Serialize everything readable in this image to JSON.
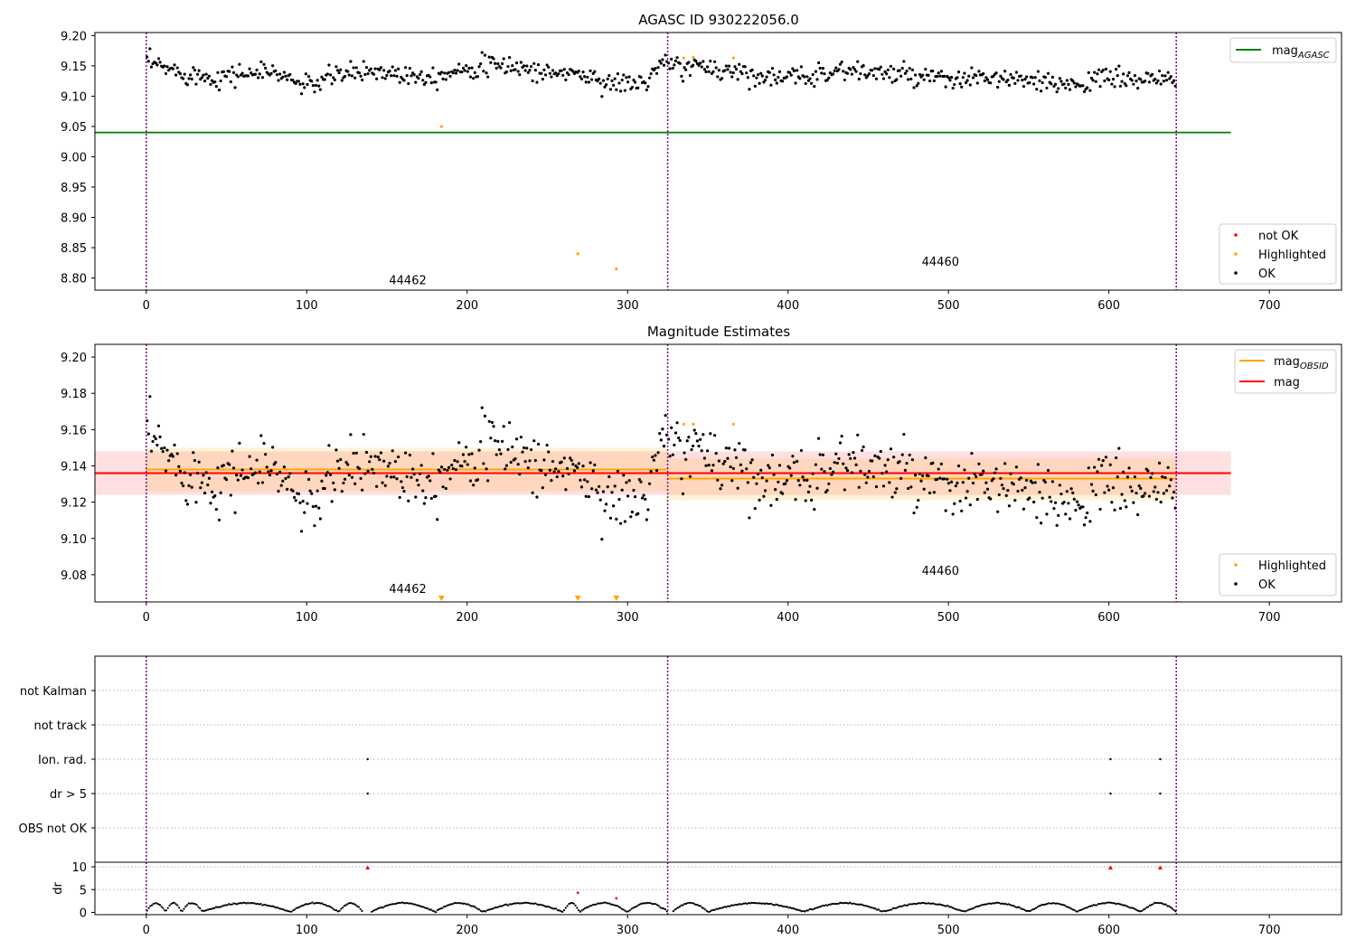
{
  "figure": {
    "colors": {
      "ok": "#000000",
      "highlighted": "#ffa500",
      "not_ok": "#ff0000",
      "agasc_line": "#008000",
      "mag_line": "#ff0000",
      "obsid_line": "#ffa500",
      "obs_boundary": "#800080"
    }
  },
  "chart_data": [
    {
      "id": "agasc",
      "type": "scatter",
      "title": "AGASC ID 930222056.0",
      "xlim": [
        -32,
        745
      ],
      "ylim": [
        8.78,
        9.205
      ],
      "x_ticks": [
        0,
        100,
        200,
        300,
        400,
        500,
        600,
        700
      ],
      "y_ticks": [
        8.8,
        8.85,
        8.9,
        8.95,
        9.0,
        9.05,
        9.1,
        9.15,
        9.2
      ],
      "y_tick_labels": [
        "8.80",
        "8.85",
        "8.90",
        "8.95",
        "9.00",
        "9.05",
        "9.10",
        "9.15",
        "9.20"
      ],
      "obs_boundaries": [
        0,
        325,
        642
      ],
      "obsid_labels": [
        {
          "x": 163,
          "y": 8.79,
          "text": "44462"
        },
        {
          "x": 495,
          "y": 8.82,
          "text": "44460"
        }
      ],
      "hlines": [
        {
          "name": "mag_AGASC",
          "y": 9.04,
          "x0": -32,
          "x1": 676,
          "color": "#008000"
        }
      ],
      "series": [
        {
          "name": "not OK",
          "color": "#ff0000",
          "points": []
        },
        {
          "name": "Highlighted",
          "color": "#ffa500",
          "points": [
            [
              184,
              9.05
            ],
            [
              269,
              8.84
            ],
            [
              293,
              8.815
            ],
            [
              335,
              9.163
            ],
            [
              341,
              9.164
            ],
            [
              366,
              9.163
            ]
          ]
        },
        {
          "name": "OK",
          "color": "#000000",
          "segments": [
            {
              "x0": 0,
              "x1": 325,
              "anchors": [
                [
                  0,
                  9.156
                ],
                [
                  20,
                  9.14
                ],
                [
                  40,
                  9.131
                ],
                [
                  60,
                  9.137
                ],
                [
                  80,
                  9.14
                ],
                [
                  95,
                  9.122
                ],
                [
                  100,
                  9.116
                ],
                [
                  120,
                  9.136
                ],
                [
                  140,
                  9.142
                ],
                [
                  160,
                  9.137
                ],
                [
                  180,
                  9.133
                ],
                [
                  200,
                  9.148
                ],
                [
                  230,
                  9.15
                ],
                [
                  250,
                  9.137
                ],
                [
                  265,
                  9.14
                ],
                [
                  280,
                  9.128
                ],
                [
                  295,
                  9.12
                ],
                [
                  310,
                  9.122
                ],
                [
                  325,
                  9.16
                ]
              ]
            },
            {
              "x0": 325,
              "x1": 642,
              "anchors": [
                [
                  325,
                  9.15
                ],
                [
                  350,
                  9.147
                ],
                [
                  370,
                  9.14
                ],
                [
                  400,
                  9.128
                ],
                [
                  430,
                  9.143
                ],
                [
                  450,
                  9.14
                ],
                [
                  470,
                  9.135
                ],
                [
                  500,
                  9.125
                ],
                [
                  520,
                  9.13
                ],
                [
                  540,
                  9.128
                ],
                [
                  560,
                  9.119
                ],
                [
                  580,
                  9.122
                ],
                [
                  600,
                  9.13
                ],
                [
                  620,
                  9.128
                ],
                [
                  642,
                  9.124
                ]
              ]
            }
          ]
        }
      ],
      "legend_top": [
        {
          "label": "mag",
          "sub": "AGASC",
          "color": "#008000"
        }
      ],
      "legend_bottom": [
        {
          "label": "not OK",
          "color": "#ff0000"
        },
        {
          "label": "Highlighted",
          "color": "#ffa500"
        },
        {
          "label": "OK",
          "color": "#000000"
        }
      ]
    },
    {
      "id": "estimates",
      "type": "scatter",
      "title": "Magnitude Estimates",
      "xlim": [
        -32,
        745
      ],
      "ylim": [
        9.065,
        9.207
      ],
      "x_ticks": [
        0,
        100,
        200,
        300,
        400,
        500,
        600,
        700
      ],
      "y_ticks": [
        9.08,
        9.1,
        9.12,
        9.14,
        9.16,
        9.18,
        9.2
      ],
      "y_tick_labels": [
        "9.08",
        "9.10",
        "9.12",
        "9.14",
        "9.16",
        "9.18",
        "9.20"
      ],
      "obs_boundaries": [
        0,
        325,
        642
      ],
      "obsid_labels": [
        {
          "x": 163,
          "y": 9.07,
          "text": "44462"
        },
        {
          "x": 495,
          "y": 9.08,
          "text": "44460"
        }
      ],
      "bands": [
        {
          "name": "mag band",
          "x0": -32,
          "x1": 676,
          "y0": 9.124,
          "y1": 9.148,
          "color": "#ff0000",
          "opacity": 0.12
        },
        {
          "name": "obs 44462 band",
          "x0": 0,
          "x1": 325,
          "y0": 9.126,
          "y1": 9.15,
          "color": "#ffa500",
          "opacity": 0.15
        },
        {
          "name": "obs 44460 band",
          "x0": 325,
          "x1": 642,
          "y0": 9.121,
          "y1": 9.144,
          "color": "#ffa500",
          "opacity": 0.15
        }
      ],
      "hlines": [
        {
          "name": "mag_OBSID 44462",
          "y": 9.138,
          "x0": 0,
          "x1": 325,
          "color": "#ffa500"
        },
        {
          "name": "mag_OBSID 44460",
          "y": 9.133,
          "x0": 325,
          "x1": 642,
          "color": "#ffa500"
        },
        {
          "name": "mag",
          "y": 9.136,
          "x0": -32,
          "x1": 676,
          "color": "#ff0000"
        }
      ],
      "clipped_markers": {
        "color": "#ffa500",
        "x": [
          184,
          269,
          293
        ]
      },
      "series": [
        {
          "name": "Highlighted",
          "color": "#ffa500",
          "points": [
            [
              335,
              9.163
            ],
            [
              341,
              9.163
            ],
            [
              366,
              9.163
            ]
          ]
        },
        {
          "name": "OK",
          "color": "#000000",
          "segments": [
            {
              "x0": 0,
              "x1": 325,
              "anchors": [
                [
                  0,
                  9.156
                ],
                [
                  20,
                  9.14
                ],
                [
                  40,
                  9.131
                ],
                [
                  60,
                  9.137
                ],
                [
                  80,
                  9.14
                ],
                [
                  95,
                  9.122
                ],
                [
                  100,
                  9.116
                ],
                [
                  120,
                  9.136
                ],
                [
                  140,
                  9.142
                ],
                [
                  160,
                  9.137
                ],
                [
                  180,
                  9.133
                ],
                [
                  200,
                  9.148
                ],
                [
                  230,
                  9.15
                ],
                [
                  250,
                  9.137
                ],
                [
                  265,
                  9.14
                ],
                [
                  280,
                  9.128
                ],
                [
                  295,
                  9.12
                ],
                [
                  310,
                  9.122
                ],
                [
                  325,
                  9.16
                ]
              ]
            },
            {
              "x0": 325,
              "x1": 642,
              "anchors": [
                [
                  325,
                  9.15
                ],
                [
                  350,
                  9.147
                ],
                [
                  370,
                  9.14
                ],
                [
                  400,
                  9.128
                ],
                [
                  430,
                  9.143
                ],
                [
                  450,
                  9.14
                ],
                [
                  470,
                  9.135
                ],
                [
                  500,
                  9.125
                ],
                [
                  520,
                  9.13
                ],
                [
                  540,
                  9.128
                ],
                [
                  560,
                  9.119
                ],
                [
                  580,
                  9.122
                ],
                [
                  600,
                  9.13
                ],
                [
                  620,
                  9.128
                ],
                [
                  642,
                  9.124
                ]
              ]
            }
          ]
        }
      ],
      "legend_top": [
        {
          "label": "mag",
          "sub": "OBSID",
          "color": "#ffa500"
        },
        {
          "label": "mag",
          "sub": "",
          "color": "#ff0000"
        }
      ],
      "legend_bottom": [
        {
          "label": "Highlighted",
          "color": "#ffa500"
        },
        {
          "label": "OK",
          "color": "#000000"
        }
      ]
    },
    {
      "id": "flags",
      "type": "scatter",
      "xlim": [
        -32,
        745
      ],
      "categories": [
        "OBS not OK",
        "dr > 5",
        "Ion. rad.",
        "not track",
        "not Kalman"
      ],
      "obs_boundaries": [
        0,
        325,
        642
      ],
      "points": [
        {
          "category": "Ion. rad.",
          "x": [
            138,
            601,
            632
          ]
        },
        {
          "category": "dr > 5",
          "x": [
            138,
            601,
            632
          ]
        }
      ]
    },
    {
      "id": "dr",
      "type": "scatter",
      "ylabel": "dr",
      "xlim": [
        -32,
        745
      ],
      "ylim": [
        -0.5,
        11
      ],
      "x_ticks": [
        0,
        100,
        200,
        300,
        400,
        500,
        600,
        700
      ],
      "y_ticks": [
        0,
        5,
        10
      ],
      "grid_lines": [
        5,
        10
      ],
      "obs_boundaries": [
        0,
        325,
        642
      ],
      "outliers_not_ok": [
        [
          138,
          9.8
        ],
        [
          601,
          9.8
        ],
        [
          632,
          9.8
        ],
        [
          269,
          4.3
        ],
        [
          293,
          3.1
        ]
      ],
      "dr_segments": [
        [
          0,
          12
        ],
        [
          12,
          22
        ],
        [
          22,
          35
        ],
        [
          35,
          90
        ],
        [
          90,
          120
        ],
        [
          120,
          135
        ],
        [
          140,
          180
        ],
        [
          180,
          210
        ],
        [
          210,
          260
        ],
        [
          260,
          270
        ],
        [
          270,
          300
        ],
        [
          300,
          325
        ],
        [
          328,
          350
        ],
        [
          350,
          410
        ],
        [
          410,
          460
        ],
        [
          460,
          510
        ],
        [
          510,
          550
        ],
        [
          550,
          580
        ],
        [
          580,
          620
        ],
        [
          620,
          642
        ]
      ]
    }
  ]
}
